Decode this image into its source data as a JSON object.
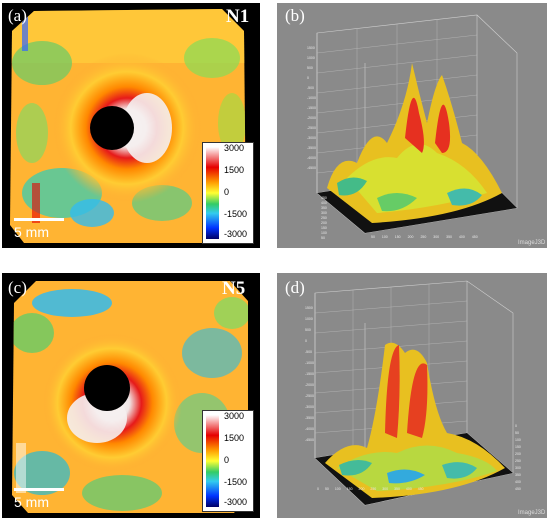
{
  "panels": {
    "a": {
      "label": "(a)",
      "sample": "N1",
      "scale": "5 mm"
    },
    "b": {
      "label": "(b)"
    },
    "c": {
      "label": "(c)",
      "sample": "N5",
      "scale": "5 mm"
    },
    "d": {
      "label": "(d)"
    }
  },
  "colorbar": {
    "ticks": [
      "3000",
      "1500",
      "0",
      "-1500",
      "-3000"
    ],
    "colors": [
      "#ffffff",
      "#e60000",
      "#ff9900",
      "#ffff33",
      "#33cc66",
      "#33ccee",
      "#0033ff",
      "#000066"
    ]
  },
  "plot3d": {
    "b_axis_x": [
      "50",
      "100",
      "150",
      "200",
      "250",
      "300",
      "350",
      "400",
      "450"
    ],
    "b_axis_y": [
      "50",
      "100",
      "150",
      "200",
      "250",
      "300",
      "350",
      "400",
      "450"
    ],
    "b_axis_z": [
      "-4500",
      "-4000",
      "-3500",
      "-3000",
      "-2500",
      "-2000",
      "-1500",
      "-1000",
      "-500",
      "0",
      "500",
      "1000",
      "1500"
    ],
    "d_axis_x": [
      "0",
      "50",
      "100",
      "150",
      "200",
      "250",
      "300",
      "350",
      "400",
      "450"
    ],
    "d_axis_y": [
      "0",
      "50",
      "100",
      "150",
      "200",
      "250",
      "300",
      "350",
      "400",
      "450"
    ],
    "d_axis_z": [
      "-4500",
      "-4000",
      "-3500",
      "-3000",
      "-2500",
      "-2000",
      "-1500",
      "-1000",
      "-500",
      "0",
      "500",
      "1000",
      "1500"
    ],
    "watermark": "ImageJ3D"
  }
}
